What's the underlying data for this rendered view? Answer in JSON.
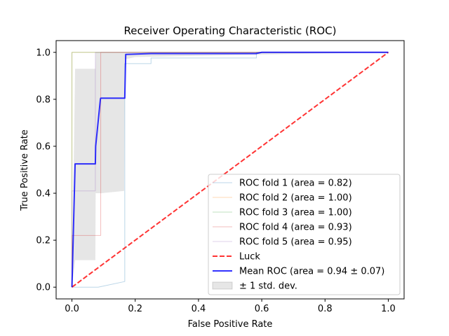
{
  "chart_data": {
    "type": "line",
    "title": "Receiver Operating Characteristic (ROC)",
    "xlabel": "False Positive Rate",
    "ylabel": "True Positive Rate",
    "xlim": [
      -0.05,
      1.05
    ],
    "ylim": [
      -0.05,
      1.05
    ],
    "xticks": [
      0.0,
      0.2,
      0.4,
      0.6,
      0.8,
      1.0
    ],
    "yticks": [
      0.0,
      0.2,
      0.4,
      0.6,
      0.8,
      1.0
    ],
    "xtick_labels": [
      "0.0",
      "0.2",
      "0.4",
      "0.6",
      "0.8",
      "1.0"
    ],
    "ytick_labels": [
      "0.0",
      "0.2",
      "0.4",
      "0.6",
      "0.8",
      "1.0"
    ],
    "grid": false,
    "legend_position": "lower-right",
    "series": [
      {
        "name": "ROC fold 1 (area = 0.82)",
        "color": "#1f77b4",
        "alpha": 0.3,
        "style": "solid",
        "x": [
          0.0,
          0.083,
          0.167,
          0.167,
          0.25,
          0.25,
          0.583,
          0.583,
          1.0
        ],
        "y": [
          0.0,
          0.0,
          0.024,
          0.952,
          0.952,
          0.976,
          0.976,
          1.0,
          1.0
        ]
      },
      {
        "name": "ROC fold 2 (area = 1.00)",
        "color": "#ff7f0e",
        "alpha": 0.3,
        "style": "solid",
        "x": [
          0.0,
          0.0,
          1.0
        ],
        "y": [
          0.0,
          1.0,
          1.0
        ]
      },
      {
        "name": "ROC fold 3 (area = 1.00)",
        "color": "#2ca02c",
        "alpha": 0.3,
        "style": "solid",
        "x": [
          0.0,
          0.0,
          1.0
        ],
        "y": [
          0.0,
          1.0,
          1.0
        ]
      },
      {
        "name": "ROC fold 4 (area = 0.93)",
        "color": "#d62728",
        "alpha": 0.3,
        "style": "solid",
        "x": [
          0.0,
          0.0,
          0.091,
          0.091,
          1.0
        ],
        "y": [
          0.0,
          0.22,
          0.22,
          1.0,
          1.0
        ]
      },
      {
        "name": "ROC fold 5 (area = 0.95)",
        "color": "#9467bd",
        "alpha": 0.3,
        "style": "solid",
        "x": [
          0.0,
          0.0,
          0.074,
          0.074,
          1.0
        ],
        "y": [
          0.0,
          0.41,
          0.41,
          1.0,
          1.0
        ]
      },
      {
        "name": "Luck",
        "color": "#ff0000",
        "alpha": 0.8,
        "style": "dashed",
        "x": [
          0.0,
          1.0
        ],
        "y": [
          0.0,
          1.0
        ]
      },
      {
        "name": "Mean ROC (area = 0.94 ± 0.07)",
        "color": "#0000ff",
        "alpha": 0.8,
        "style": "solid",
        "x": [
          0.0,
          0.01,
          0.02,
          0.074,
          0.075,
          0.09,
          0.091,
          0.167,
          0.17,
          0.25,
          0.5,
          0.583,
          0.6,
          1.0
        ],
        "y": [
          0.0,
          0.525,
          0.525,
          0.525,
          0.6,
          0.801,
          0.805,
          0.805,
          0.991,
          0.995,
          0.995,
          0.995,
          1.0,
          1.0
        ]
      }
    ],
    "band": {
      "name": "± 1 std. dev.",
      "color": "#808080",
      "alpha": 0.2,
      "x": [
        0.0,
        0.01,
        0.074,
        0.075,
        0.091,
        0.092,
        0.165,
        0.167,
        0.2,
        0.583,
        1.0
      ],
      "upper": [
        0.0,
        0.93,
        0.93,
        1.0,
        1.0,
        1.0,
        1.0,
        1.0,
        1.0,
        1.0,
        1.0
      ],
      "lower": [
        0.0,
        0.115,
        0.115,
        0.4,
        0.4,
        0.4,
        0.41,
        0.97,
        0.98,
        0.99,
        1.0
      ]
    }
  }
}
